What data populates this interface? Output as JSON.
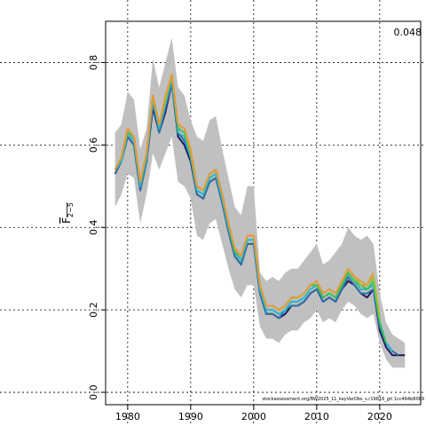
{
  "chart_data": {
    "type": "line",
    "title": "",
    "xlabel": "",
    "ylabel_main": "F",
    "ylabel_sub": "2−5",
    "corner_label": "0.048",
    "footer_text": "stockassessment.org/BW2025_11_keyVarObs_s.r19816_git 1cc464b8089",
    "xlim": [
      1976.5,
      2026.5
    ],
    "ylim": [
      -0.03,
      0.9
    ],
    "x_ticks": [
      1980,
      1990,
      2000,
      2010,
      2020
    ],
    "x_tick_labels": [
      "1980",
      "1990",
      "2000",
      "2010",
      "2020"
    ],
    "y_ticks": [
      0.0,
      0.2,
      0.4,
      0.6,
      0.8
    ],
    "y_tick_labels": [
      "0.0",
      "0.2",
      "0.4",
      "0.6",
      "0.8"
    ],
    "grid": true,
    "band": {
      "x": [
        1978,
        1979,
        1980,
        1981,
        1982,
        1983,
        1984,
        1985,
        1986,
        1987,
        1988,
        1989,
        1990,
        1991,
        1992,
        1993,
        1994,
        1995,
        1996,
        1997,
        1998,
        1999,
        2000,
        2001,
        2002,
        2003,
        2004,
        2005,
        2006,
        2007,
        2008,
        2009,
        2010,
        2011,
        2012,
        2013,
        2014,
        2015,
        2016,
        2017,
        2018,
        2019,
        2020,
        2021,
        2022,
        2023,
        2024
      ],
      "lower": [
        0.45,
        0.48,
        0.53,
        0.52,
        0.41,
        0.48,
        0.58,
        0.54,
        0.58,
        0.62,
        0.51,
        0.5,
        0.47,
        0.38,
        0.37,
        0.41,
        0.42,
        0.36,
        0.3,
        0.25,
        0.23,
        0.26,
        0.26,
        0.16,
        0.13,
        0.13,
        0.12,
        0.14,
        0.15,
        0.15,
        0.17,
        0.18,
        0.2,
        0.17,
        0.18,
        0.17,
        0.2,
        0.22,
        0.21,
        0.19,
        0.18,
        0.19,
        0.12,
        0.08,
        0.06,
        0.06,
        0.06
      ],
      "upper": [
        0.63,
        0.65,
        0.73,
        0.71,
        0.59,
        0.64,
        0.81,
        0.74,
        0.8,
        0.86,
        0.74,
        0.72,
        0.66,
        0.62,
        0.61,
        0.66,
        0.67,
        0.59,
        0.52,
        0.45,
        0.43,
        0.5,
        0.5,
        0.29,
        0.27,
        0.28,
        0.27,
        0.29,
        0.3,
        0.3,
        0.32,
        0.34,
        0.36,
        0.31,
        0.32,
        0.34,
        0.36,
        0.4,
        0.38,
        0.37,
        0.38,
        0.36,
        0.24,
        0.17,
        0.14,
        0.13,
        0.12
      ]
    },
    "series": [
      {
        "color": "#1a1a66",
        "x": [
          1978,
          1979,
          1980,
          1981,
          1982,
          1983,
          1984,
          1985,
          1986,
          1987,
          1988,
          1989,
          1990,
          1991,
          1992,
          1993,
          1994,
          1995,
          1996,
          1997,
          1998,
          1999,
          2000,
          2001,
          2002,
          2003,
          2004,
          2005,
          2006,
          2007,
          2008,
          2009,
          2010,
          2011,
          2012,
          2013,
          2014,
          2015,
          2016,
          2017,
          2018,
          2019,
          2020,
          2021,
          2022,
          2023,
          2024
        ],
        "values": [
          0.53,
          0.56,
          0.62,
          0.6,
          0.49,
          0.56,
          0.69,
          0.63,
          0.68,
          0.75,
          0.62,
          0.6,
          0.56,
          0.48,
          0.47,
          0.51,
          0.52,
          0.46,
          0.39,
          0.33,
          0.31,
          0.36,
          0.36,
          0.24,
          0.19,
          0.19,
          0.18,
          0.19,
          0.21,
          0.21,
          0.22,
          0.24,
          0.25,
          0.22,
          0.23,
          0.22,
          0.25,
          0.27,
          0.26,
          0.24,
          0.23,
          0.25,
          0.15,
          0.11,
          0.09,
          0.09,
          0.09
        ]
      },
      {
        "color": "#2f6fa8",
        "x": [
          1978,
          1979,
          1980,
          1981,
          1982,
          1983,
          1984,
          1985,
          1986,
          1987,
          1988,
          1989,
          1990,
          1991,
          1992,
          1993,
          1994,
          1995,
          1996,
          1997,
          1998,
          1999,
          2000,
          2001,
          2002,
          2003,
          2004,
          2005,
          2006,
          2007,
          2008,
          2009,
          2010,
          2011,
          2012,
          2013,
          2014,
          2015,
          2016,
          2017,
          2018,
          2019,
          2020,
          2021,
          2022,
          2023
        ],
        "values": [
          0.53,
          0.56,
          0.62,
          0.6,
          0.49,
          0.56,
          0.7,
          0.63,
          0.69,
          0.75,
          0.63,
          0.61,
          0.57,
          0.48,
          0.47,
          0.51,
          0.52,
          0.46,
          0.39,
          0.33,
          0.31,
          0.36,
          0.36,
          0.24,
          0.19,
          0.19,
          0.18,
          0.2,
          0.21,
          0.21,
          0.22,
          0.24,
          0.25,
          0.22,
          0.23,
          0.22,
          0.25,
          0.28,
          0.26,
          0.24,
          0.24,
          0.25,
          0.16,
          0.12,
          0.1,
          0.09
        ]
      },
      {
        "color": "#26b8c8",
        "x": [
          1978,
          1979,
          1980,
          1981,
          1982,
          1983,
          1984,
          1985,
          1986,
          1987,
          1988,
          1989,
          1990,
          1991,
          1992,
          1993,
          1994,
          1995,
          1996,
          1997,
          1998,
          1999,
          2000,
          2001,
          2002,
          2003,
          2004,
          2005,
          2006,
          2007,
          2008,
          2009,
          2010,
          2011,
          2012,
          2013,
          2014,
          2015,
          2016,
          2017,
          2018,
          2019,
          2020,
          2021,
          2022
        ],
        "values": [
          0.54,
          0.56,
          0.63,
          0.61,
          0.5,
          0.57,
          0.71,
          0.64,
          0.7,
          0.76,
          0.63,
          0.62,
          0.57,
          0.49,
          0.48,
          0.52,
          0.53,
          0.47,
          0.4,
          0.34,
          0.32,
          0.37,
          0.37,
          0.25,
          0.2,
          0.2,
          0.19,
          0.2,
          0.22,
          0.22,
          0.23,
          0.25,
          0.26,
          0.23,
          0.24,
          0.23,
          0.26,
          0.29,
          0.27,
          0.25,
          0.25,
          0.26,
          0.17,
          0.12,
          0.1
        ]
      },
      {
        "color": "#3cbf5a",
        "x": [
          1978,
          1979,
          1980,
          1981,
          1982,
          1983,
          1984,
          1985,
          1986,
          1987,
          1988,
          1989,
          1990,
          1991,
          1992,
          1993,
          1994,
          1995,
          1996,
          1997,
          1998,
          1999,
          2000,
          2001,
          2002,
          2003,
          2004,
          2005,
          2006,
          2007,
          2008,
          2009,
          2010,
          2011,
          2012,
          2013,
          2014,
          2015,
          2016,
          2017,
          2018,
          2019,
          2020,
          2021
        ],
        "values": [
          0.54,
          0.57,
          0.63,
          0.62,
          0.51,
          0.58,
          0.72,
          0.65,
          0.71,
          0.77,
          0.64,
          0.63,
          0.58,
          0.5,
          0.49,
          0.53,
          0.54,
          0.48,
          0.41,
          0.34,
          0.33,
          0.38,
          0.38,
          0.26,
          0.21,
          0.21,
          0.2,
          0.21,
          0.23,
          0.23,
          0.24,
          0.26,
          0.26,
          0.23,
          0.24,
          0.23,
          0.26,
          0.29,
          0.27,
          0.26,
          0.25,
          0.27,
          0.17,
          0.12
        ]
      },
      {
        "color": "#9bbf2a",
        "x": [
          1978,
          1979,
          1980,
          1981,
          1982,
          1983,
          1984,
          1985,
          1986,
          1987,
          1988,
          1989,
          1990,
          1991,
          1992,
          1993,
          1994,
          1995,
          1996,
          1997,
          1998,
          1999,
          2000,
          2001,
          2002,
          2003,
          2004,
          2005,
          2006,
          2007,
          2008,
          2009,
          2010,
          2011,
          2012,
          2013,
          2014,
          2015,
          2016,
          2017,
          2018,
          2019,
          2020
        ],
        "values": [
          0.54,
          0.57,
          0.64,
          0.62,
          0.51,
          0.58,
          0.72,
          0.65,
          0.71,
          0.77,
          0.65,
          0.64,
          0.58,
          0.5,
          0.49,
          0.53,
          0.54,
          0.48,
          0.41,
          0.35,
          0.33,
          0.38,
          0.38,
          0.26,
          0.21,
          0.21,
          0.2,
          0.21,
          0.23,
          0.23,
          0.24,
          0.26,
          0.27,
          0.24,
          0.25,
          0.24,
          0.27,
          0.3,
          0.28,
          0.26,
          0.26,
          0.28,
          0.18
        ]
      },
      {
        "color": "#e59a3a",
        "x": [
          1978,
          1979,
          1980,
          1981,
          1982,
          1983,
          1984,
          1985,
          1986,
          1987,
          1988,
          1989,
          1990,
          1991,
          1992,
          1993,
          1994,
          1995,
          1996,
          1997,
          1998,
          1999,
          2000,
          2001,
          2002,
          2003,
          2004,
          2005,
          2006,
          2007,
          2008,
          2009,
          2010,
          2011,
          2012,
          2013,
          2014,
          2015,
          2016,
          2017,
          2018,
          2019
        ],
        "values": [
          0.54,
          0.57,
          0.64,
          0.62,
          0.51,
          0.58,
          0.72,
          0.65,
          0.72,
          0.77,
          0.65,
          0.64,
          0.59,
          0.5,
          0.49,
          0.53,
          0.54,
          0.48,
          0.41,
          0.35,
          0.33,
          0.38,
          0.38,
          0.26,
          0.21,
          0.21,
          0.2,
          0.21,
          0.23,
          0.23,
          0.24,
          0.26,
          0.27,
          0.24,
          0.25,
          0.24,
          0.27,
          0.3,
          0.28,
          0.27,
          0.26,
          0.29
        ]
      }
    ]
  }
}
